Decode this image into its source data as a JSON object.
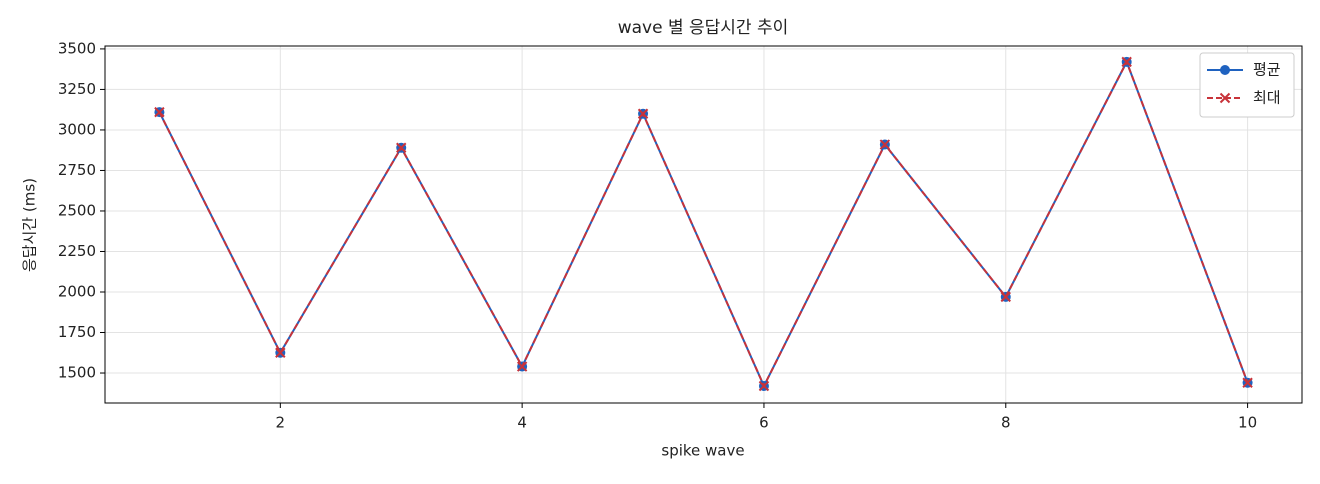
{
  "chart_data": {
    "type": "line",
    "title": "wave 별 응답시간 추이",
    "x_label": "spike wave",
    "y_label": "응답시간 (ms)",
    "x": [
      1,
      2,
      3,
      4,
      5,
      6,
      7,
      8,
      9,
      10
    ],
    "series": [
      {
        "name": "평균",
        "color": "#1f62c0",
        "marker": "circle",
        "dash": false,
        "values": [
          3110,
          1625,
          2890,
          1540,
          3100,
          1420,
          2910,
          1970,
          3420,
          1440
        ]
      },
      {
        "name": "최대",
        "color": "#c8333a",
        "marker": "x",
        "dash": true,
        "values": [
          3110,
          1625,
          2890,
          1540,
          3100,
          1420,
          2910,
          1970,
          3420,
          1440
        ]
      }
    ],
    "xlim": [
      0.55,
      10.45
    ],
    "ylim": [
      1315,
      3518
    ],
    "xticks": [
      2,
      4,
      6,
      8,
      10
    ],
    "yticks": [
      1500,
      1750,
      2000,
      2250,
      2500,
      2750,
      3000,
      3250,
      3500
    ],
    "grid": true,
    "legend": "upper right"
  }
}
